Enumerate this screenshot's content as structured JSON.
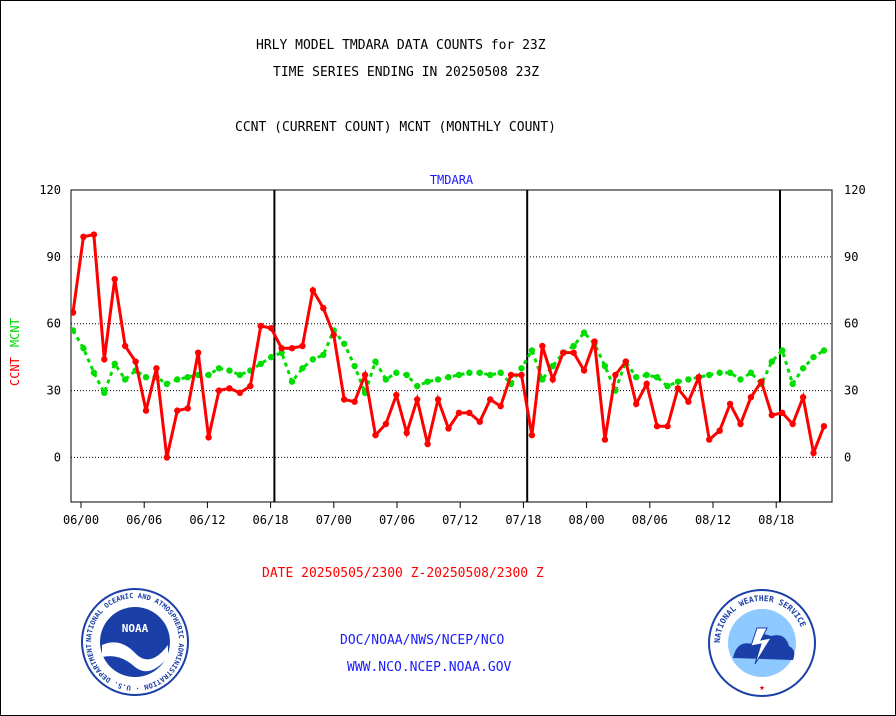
{
  "header": {
    "line1": "HRLY MODEL TMDARA DATA COUNTS for 23Z",
    "line2": "TIME SERIES ENDING IN 20250508 23Z",
    "line3": "CCNT (CURRENT COUNT) MCNT (MONTHLY COUNT)"
  },
  "footer": {
    "date_range": "DATE 20250505/2300 Z-20250508/2300 Z",
    "org_path": "DOC/NOAA/NWS/NCEP/NCO",
    "website": "WWW.NCO.NCEP.NOAA.GOV"
  },
  "logos": {
    "noaa": {
      "center_text": "NOAA",
      "ring_text": "NATIONAL OCEANIC AND ATMOSPHERIC ADMINISTRATION · U.S. DEPARTMENT OF COMMERCE"
    },
    "nws": {
      "ring_text": "NATIONAL WEATHER SERVICE"
    }
  },
  "colors": {
    "ccnt": "#ff0000",
    "mcnt": "#00dd00",
    "title_blue": "#1a1aff",
    "grid": "#000000"
  },
  "chart_data": {
    "type": "line",
    "title": "TMDARA",
    "ylabel_parts": [
      {
        "text": "CCNT",
        "color": "#ff0000"
      },
      {
        "text": "MCNT",
        "color": "#00dd00"
      }
    ],
    "ylim": [
      -20,
      120
    ],
    "yticks": [
      0,
      30,
      60,
      90,
      120
    ],
    "xticks": [
      "06/00",
      "06/06",
      "06/12",
      "06/18",
      "07/00",
      "07/06",
      "07/12",
      "07/18",
      "08/00",
      "08/06",
      "08/12",
      "08/18"
    ],
    "grid": true,
    "series": [
      {
        "name": "CCNT",
        "color": "#ff0000",
        "style": "solid",
        "values": [
          65,
          99,
          100,
          44,
          80,
          50,
          43,
          21,
          40,
          0,
          21,
          22,
          47,
          9,
          30,
          31,
          29,
          32,
          59,
          58,
          49,
          49,
          50,
          75,
          67,
          55,
          26,
          25,
          37,
          10,
          15,
          28,
          11,
          26,
          6,
          26,
          13,
          20,
          20,
          16,
          26,
          23,
          37,
          37,
          10,
          50,
          35,
          47,
          47,
          39,
          52,
          8,
          37,
          43,
          24,
          33,
          14,
          14,
          31,
          25,
          36,
          8,
          12,
          24,
          15,
          27,
          34,
          19,
          20,
          15,
          27,
          2,
          14
        ]
      },
      {
        "name": "MCNT",
        "color": "#00dd00",
        "style": "dotted",
        "values": [
          57,
          49,
          38,
          29,
          42,
          35,
          39,
          36,
          36,
          33,
          35,
          36,
          37,
          37,
          40,
          39,
          37,
          39,
          42,
          45,
          47,
          34,
          40,
          44,
          46,
          57,
          51,
          41,
          29,
          43,
          35,
          38,
          37,
          32,
          34,
          35,
          36,
          37,
          38,
          38,
          37,
          38,
          33,
          40,
          48,
          35,
          41,
          47,
          50,
          56,
          51,
          41,
          30,
          43,
          36,
          37,
          36,
          32,
          34,
          35,
          36,
          37,
          38,
          38,
          35,
          38,
          33,
          43,
          48,
          33,
          40,
          45,
          48
        ]
      }
    ]
  }
}
